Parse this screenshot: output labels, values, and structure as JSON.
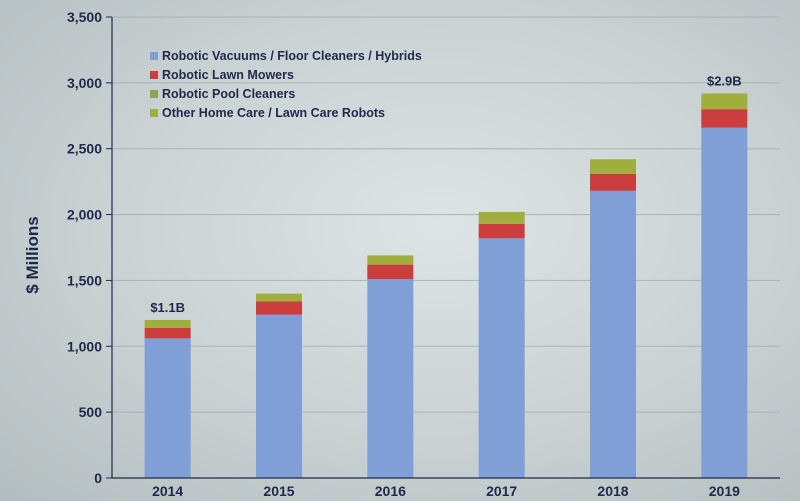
{
  "chart_data": {
    "type": "bar",
    "stacked": true,
    "ylabel": "$ Millions",
    "ylim": [
      0,
      3500
    ],
    "yticks": [
      0,
      500,
      1000,
      1500,
      2000,
      2500,
      3000,
      3500
    ],
    "ytick_labels": [
      "0",
      "500",
      "1,000",
      "1,500",
      "2,000",
      "2,500",
      "3,000",
      "3,500"
    ],
    "categories": [
      "2014",
      "2015",
      "2016",
      "2017",
      "2018",
      "2019"
    ],
    "grid": true,
    "legend_position": "top-left",
    "series": [
      {
        "name": "Robotic Vacuums / Floor Cleaners / Hybrids",
        "color": "#7f9fd6",
        "values": [
          1060,
          1240,
          1510,
          1820,
          2180,
          2660
        ]
      },
      {
        "name": "Robotic Lawn Mowers",
        "color": "#cc3d3d",
        "values": [
          80,
          100,
          110,
          110,
          130,
          140
        ]
      },
      {
        "name": "Robotic Pool Cleaners",
        "color": "#8ca34f",
        "values": [
          0,
          0,
          0,
          0,
          0,
          0
        ]
      },
      {
        "name": "Other Home Care / Lawn Care Robots",
        "color": "#9fae3c",
        "values": [
          60,
          60,
          70,
          90,
          110,
          120
        ]
      }
    ],
    "annotations": [
      {
        "category": "2014",
        "text": "$1.1B"
      },
      {
        "category": "2019",
        "text": "$2.9B"
      }
    ]
  }
}
